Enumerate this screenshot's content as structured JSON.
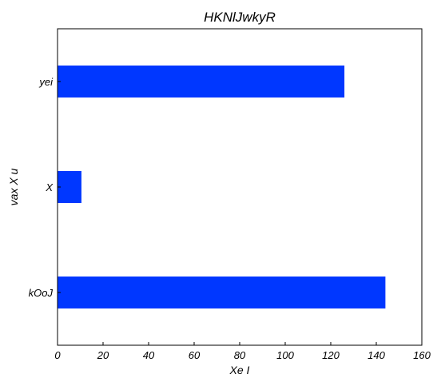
{
  "chart_data": {
    "type": "bar",
    "orientation": "horizontal",
    "title": "HKNlJwkyR",
    "xlabel": "Xe I",
    "ylabel": "vax X u",
    "categories": [
      "kOoJ",
      "X",
      "yei"
    ],
    "values": [
      144,
      10.5,
      126
    ],
    "xlim": [
      0,
      160
    ],
    "xticks": [
      0,
      20,
      40,
      60,
      80,
      100,
      120,
      140,
      160
    ],
    "grid": false,
    "legend": "none",
    "bar_color": "#0037ff"
  }
}
